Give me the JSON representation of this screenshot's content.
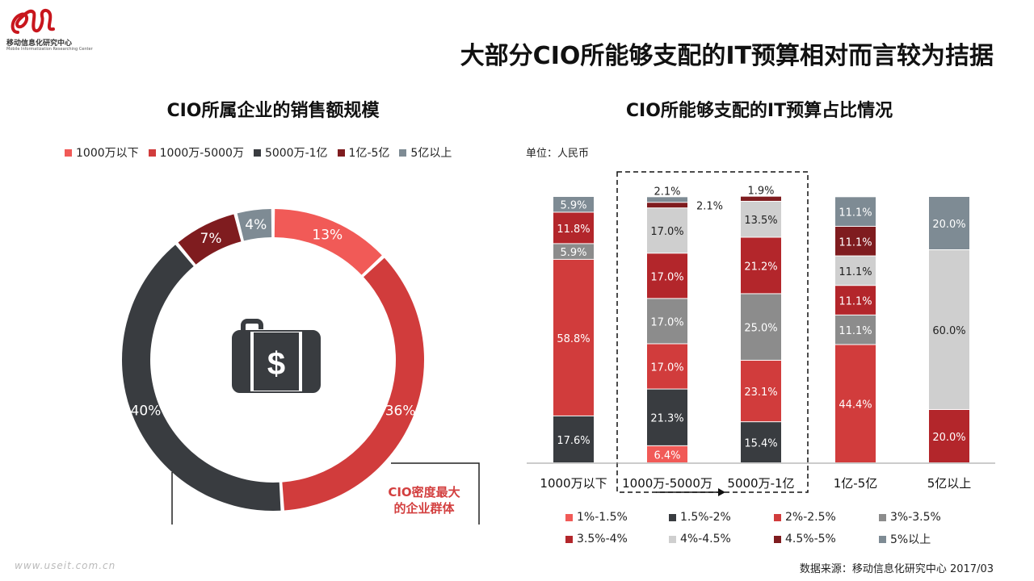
{
  "logo": {
    "name_cn": "移动信息化研究中心",
    "name_en": "Mobile Informatization Researching Center"
  },
  "title": "大部分CIO所能够支配的IT预算相对而言较为拮据",
  "website": "www.useit.com.cn",
  "source": "数据来源：移动信息化研究中心 2017/03",
  "callout": {
    "line1": "CIO密度最大",
    "line2": "的企业群体"
  },
  "chart_data": [
    {
      "type": "pie",
      "title": "CIO所属企业的销售额规模",
      "categories": [
        "1000万以下",
        "1000万-5000万",
        "5000万-1亿",
        "1亿-5亿",
        "5亿以上"
      ],
      "values": [
        13,
        36,
        40,
        7,
        4
      ],
      "value_labels": [
        "13%",
        "36%",
        "40%",
        "7%",
        "4%"
      ],
      "colors": [
        "#f15a57",
        "#d13c3c",
        "#393c40",
        "#7f1c1f",
        "#7e8b94"
      ],
      "legend": "top",
      "center_icon": "money-briefcase-icon"
    },
    {
      "type": "bar",
      "stacked": true,
      "title": "CIO所能够支配的IT预算占比情况",
      "unit": "单位：人民币",
      "categories": [
        "1000万以下",
        "1000万-5000万",
        "5000万-1亿",
        "1亿-5亿",
        "5亿以上"
      ],
      "series": [
        {
          "name": "1%-1.5%",
          "color": "#f15a57",
          "values": [
            0,
            6.4,
            0,
            0,
            0
          ]
        },
        {
          "name": "1.5%-2%",
          "color": "#393c40",
          "values": [
            17.6,
            21.3,
            15.4,
            0,
            0
          ]
        },
        {
          "name": "2%-2.5%",
          "color": "#d13c3c",
          "values": [
            58.8,
            17.0,
            23.1,
            44.4,
            0
          ]
        },
        {
          "name": "3%-3.5%",
          "color": "#8c8c8c",
          "values": [
            5.9,
            17.0,
            25.0,
            11.1,
            0
          ]
        },
        {
          "name": "3.5%-4%",
          "color": "#b3262b",
          "values": [
            11.8,
            17.0,
            21.2,
            11.1,
            20.0
          ]
        },
        {
          "name": "4%-4.5%",
          "color": "#cfcfcf",
          "values": [
            0,
            17.0,
            13.5,
            11.1,
            60.0
          ]
        },
        {
          "name": "4.5%-5%",
          "color": "#7f1c1f",
          "values": [
            0,
            2.1,
            1.9,
            11.1,
            0
          ]
        },
        {
          "name": "5%以上",
          "color": "#7e8b94",
          "values": [
            5.9,
            2.1,
            0,
            11.1,
            20.0
          ]
        }
      ],
      "ylim": [
        0,
        100
      ],
      "highlight": [
        "1000万-5000万",
        "5000万-1亿"
      ],
      "legend": "bottom"
    }
  ]
}
